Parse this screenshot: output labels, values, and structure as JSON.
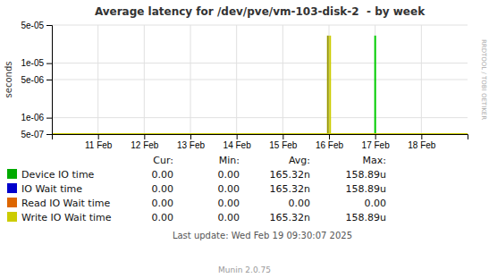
{
  "chart_data": {
    "type": "line",
    "title": "Average latency for /dev/pve/vm-103-disk-2  - by week",
    "ylabel": "seconds",
    "log": "y",
    "grid": true,
    "xlim": [
      1707523200,
      1708300800
    ],
    "ylim": [
      5e-07,
      5e-05
    ],
    "xticks": [
      {
        "value": 1707609600,
        "label": "11 Feb"
      },
      {
        "value": 1707696000,
        "label": "12 Feb"
      },
      {
        "value": 1707782400,
        "label": "13 Feb"
      },
      {
        "value": 1707868800,
        "label": "14 Feb"
      },
      {
        "value": 1707955200,
        "label": "15 Feb"
      },
      {
        "value": 1708041600,
        "label": "16 Feb"
      },
      {
        "value": 1708128000,
        "label": "17 Feb"
      },
      {
        "value": 1708214400,
        "label": "18 Feb"
      }
    ],
    "yticks": [
      {
        "value": 5e-07,
        "label": "5e-07"
      },
      {
        "value": 1e-06,
        "label": "1e-06"
      },
      {
        "value": 5e-06,
        "label": "5e-06"
      },
      {
        "value": 1e-05,
        "label": "1e-05"
      },
      {
        "value": 5e-05,
        "label": "5e-05"
      }
    ],
    "series": [
      {
        "color": "#999900",
        "x": [
          1708041600,
          1708041600
        ],
        "values": [
          5e-07,
          3.2e-05
        ]
      },
      {
        "color": "#cccc00",
        "x": [
          1708041600,
          1708041600
        ],
        "values": [
          5e-07,
          3.2e-05
        ]
      },
      {
        "color": "#00cc00",
        "x": [
          1708128000,
          1708128000
        ],
        "values": [
          5e-07,
          3.2e-05
        ]
      },
      {
        "color": "#cccc00",
        "x": [
          1707523200,
          1708300800
        ],
        "values": [
          5e-07,
          5e-07
        ]
      }
    ],
    "table": {
      "columns": [
        "Cur:",
        "Min:",
        "Avg:",
        "Max:"
      ],
      "rows": [
        {
          "label": "Device IO time",
          "color": "#00aa00",
          "values": [
            "0.00",
            "0.00",
            "165.32n",
            "158.89u"
          ]
        },
        {
          "label": "IO Wait time",
          "color": "#0000cc",
          "values": [
            "0.00",
            "0.00",
            "165.32n",
            "158.89u"
          ]
        },
        {
          "label": "Read IO Wait time",
          "color": "#dd6600",
          "values": [
            "0.00",
            "0.00",
            "0.00",
            "0.00"
          ]
        },
        {
          "label": "Write IO Wait time",
          "color": "#cccc00",
          "values": [
            "0.00",
            "0.00",
            "165.32n",
            "158.89u"
          ]
        }
      ]
    },
    "annotations": [
      "Last update: Wed Feb 19 09:30:07 2025",
      "Munin 2.0.75",
      "RRDTOOL / TOBI OETIKER"
    ]
  }
}
